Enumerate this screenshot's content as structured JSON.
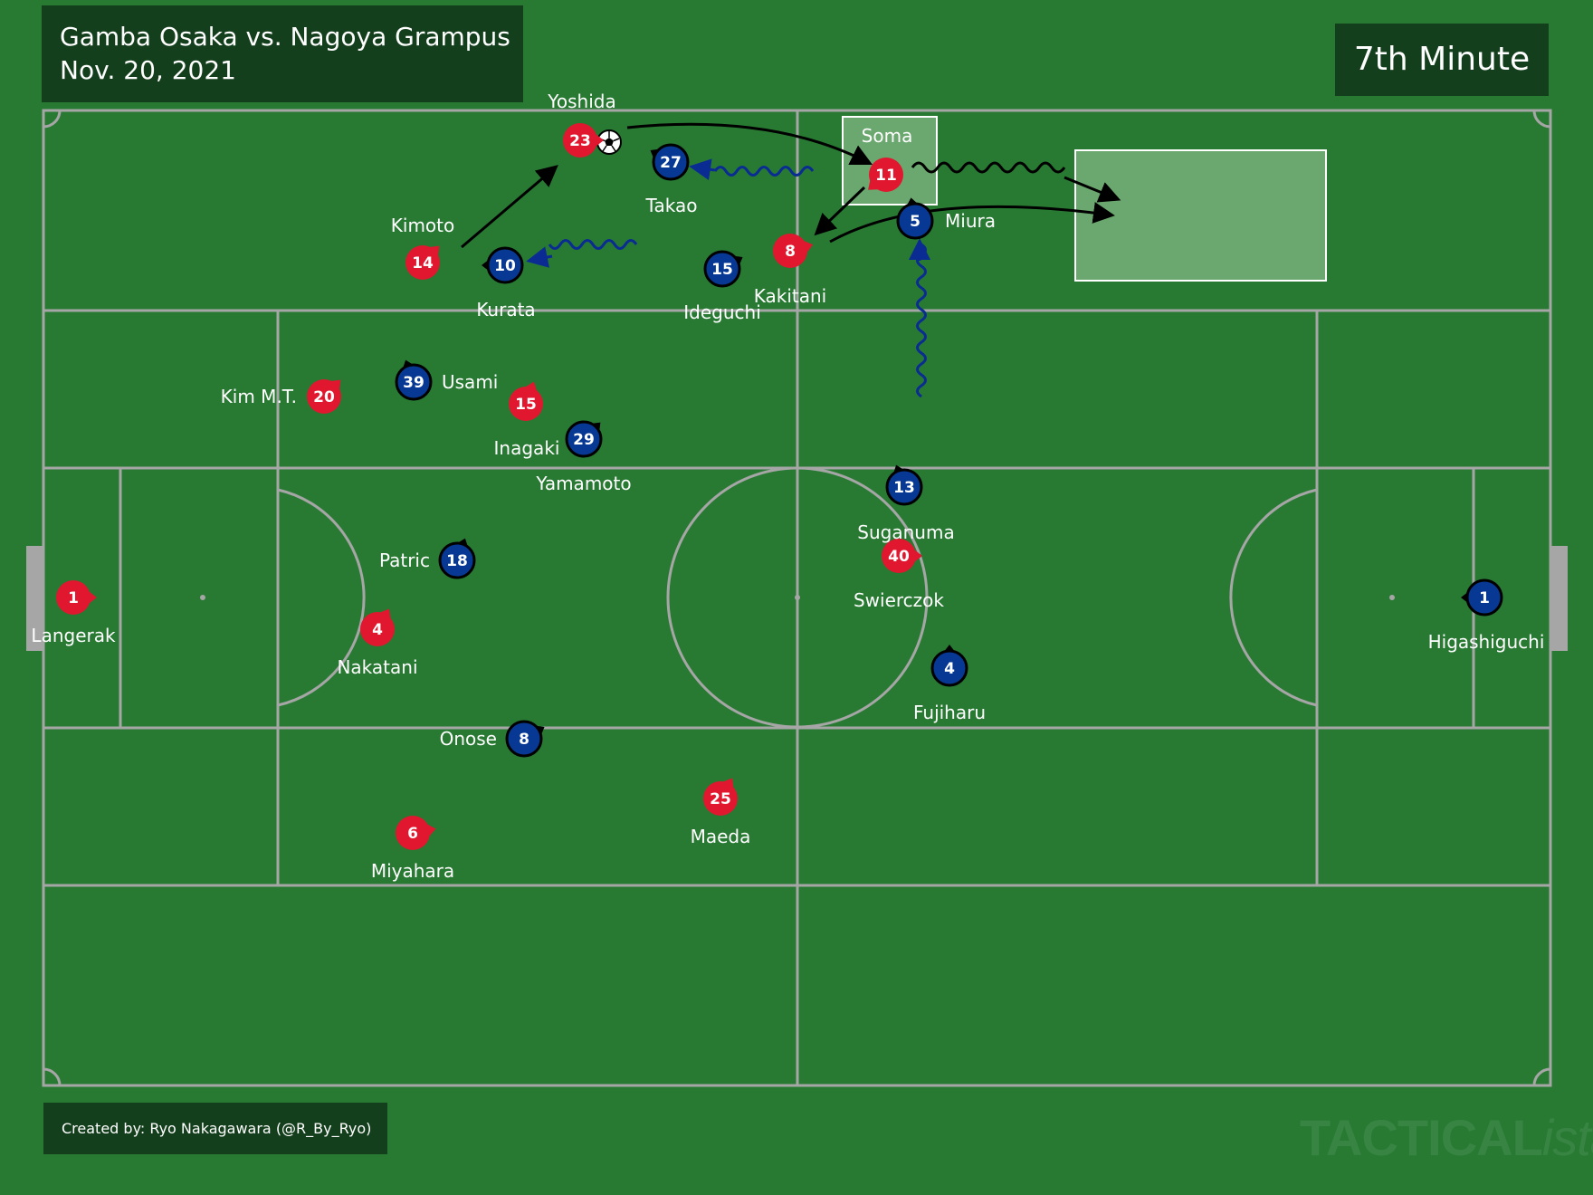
{
  "match": {
    "title": "Gamba Osaka vs. Nagoya Grampus",
    "date": "Nov. 20, 2021"
  },
  "minute_label": "7th Minute",
  "credit": "Created by: Ryo Nakagawara (@R_By_Ryo)",
  "watermark": {
    "main": "TACTICAL",
    "suffix": "ista"
  },
  "colors": {
    "pitch": "#287a33",
    "lines": "#a6a6a6",
    "home": "#e0172e",
    "away": "#073994",
    "panel": "#143f1c"
  },
  "highlight_zones": [
    {
      "label": "Soma"
    },
    {
      "label": ""
    }
  ],
  "players": {
    "home": [
      {
        "number": "1",
        "name": "Langerak"
      },
      {
        "number": "4",
        "name": "Nakatani"
      },
      {
        "number": "6",
        "name": "Miyahara"
      },
      {
        "number": "25",
        "name": "Maeda"
      },
      {
        "number": "40",
        "name": "Swierczok"
      },
      {
        "number": "20",
        "name": "Kim M.T."
      },
      {
        "number": "15",
        "name": "Inagaki"
      },
      {
        "number": "14",
        "name": "Kimoto"
      },
      {
        "number": "23",
        "name": "Yoshida"
      },
      {
        "number": "8",
        "name": "Kakitani"
      },
      {
        "number": "11",
        "name": ""
      }
    ],
    "away": [
      {
        "number": "1",
        "name": "Higashiguchi"
      },
      {
        "number": "4",
        "name": "Fujiharu"
      },
      {
        "number": "13",
        "name": "Suganuma"
      },
      {
        "number": "18",
        "name": "Patric"
      },
      {
        "number": "8",
        "name": "Onose"
      },
      {
        "number": "29",
        "name": "Yamamoto"
      },
      {
        "number": "39",
        "name": "Usami"
      },
      {
        "number": "10",
        "name": "Kurata"
      },
      {
        "number": "15",
        "name": "Ideguchi"
      },
      {
        "number": "27",
        "name": "Takao"
      },
      {
        "number": "5",
        "name": "Miura"
      }
    ]
  }
}
